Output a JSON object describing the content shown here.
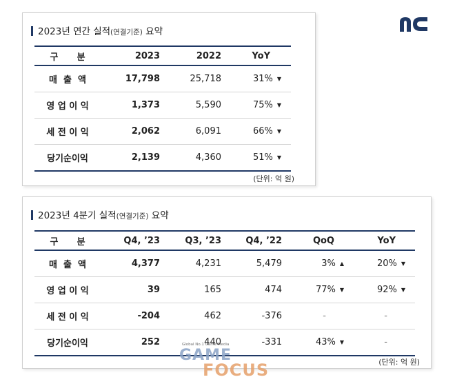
{
  "logo": {
    "text": "nc",
    "color": "#1f3864"
  },
  "annual": {
    "title_main": "2023년 연간 실적",
    "title_small": "(연결기준)",
    "title_tail": " 요약",
    "headers": [
      "구      분",
      "2023",
      "2022",
      "YoY"
    ],
    "rows": [
      {
        "label": "매  출  액",
        "v2023": "17,798",
        "v2022": "25,718",
        "yoy": "31%",
        "yoy_arrow": "▼"
      },
      {
        "label": "영 업 이 익",
        "v2023": "1,373",
        "v2022": "5,590",
        "yoy": "75%",
        "yoy_arrow": "▼"
      },
      {
        "label": "세 전 이 익",
        "v2023": "2,062",
        "v2022": "6,091",
        "yoy": "66%",
        "yoy_arrow": "▼"
      },
      {
        "label": "당기순이익",
        "v2023": "2,139",
        "v2022": "4,360",
        "yoy": "51%",
        "yoy_arrow": "▼"
      }
    ],
    "unit": "(단위: 억 원)"
  },
  "quarter": {
    "title_main": "2023년 4분기 실적",
    "title_small": "(연결기준)",
    "title_tail": " 요약",
    "headers": [
      "구      분",
      "Q4, ’23",
      "Q3, ’23",
      "Q4, ’22",
      "QoQ",
      "YoY"
    ],
    "rows": [
      {
        "label": "매  출  액",
        "q4_23": "4,377",
        "q3_23": "4,231",
        "q4_22": "5,479",
        "qoq": "3%",
        "qoq_arrow": "▲",
        "yoy": "20%",
        "yoy_arrow": "▼"
      },
      {
        "label": "영 업 이 익",
        "q4_23": "39",
        "q3_23": "165",
        "q4_22": "474",
        "qoq": "77%",
        "qoq_arrow": "▼",
        "yoy": "92%",
        "yoy_arrow": "▼"
      },
      {
        "label": "세 전 이 익",
        "q4_23": "-204",
        "q3_23": "462",
        "q4_22": "-376",
        "qoq": "-",
        "qoq_arrow": "",
        "yoy": "-",
        "yoy_arrow": ""
      },
      {
        "label": "당기순이익",
        "q4_23": "252",
        "q3_23": "440",
        "q4_22": "-331",
        "qoq": "43%",
        "qoq_arrow": "▼",
        "yoy": "-",
        "yoy_arrow": ""
      }
    ],
    "unit": "(단위: 억 원)"
  },
  "watermark": {
    "tagline": "Global No.1 Game Media",
    "line1": "GAME",
    "line2": "FOCUS"
  }
}
